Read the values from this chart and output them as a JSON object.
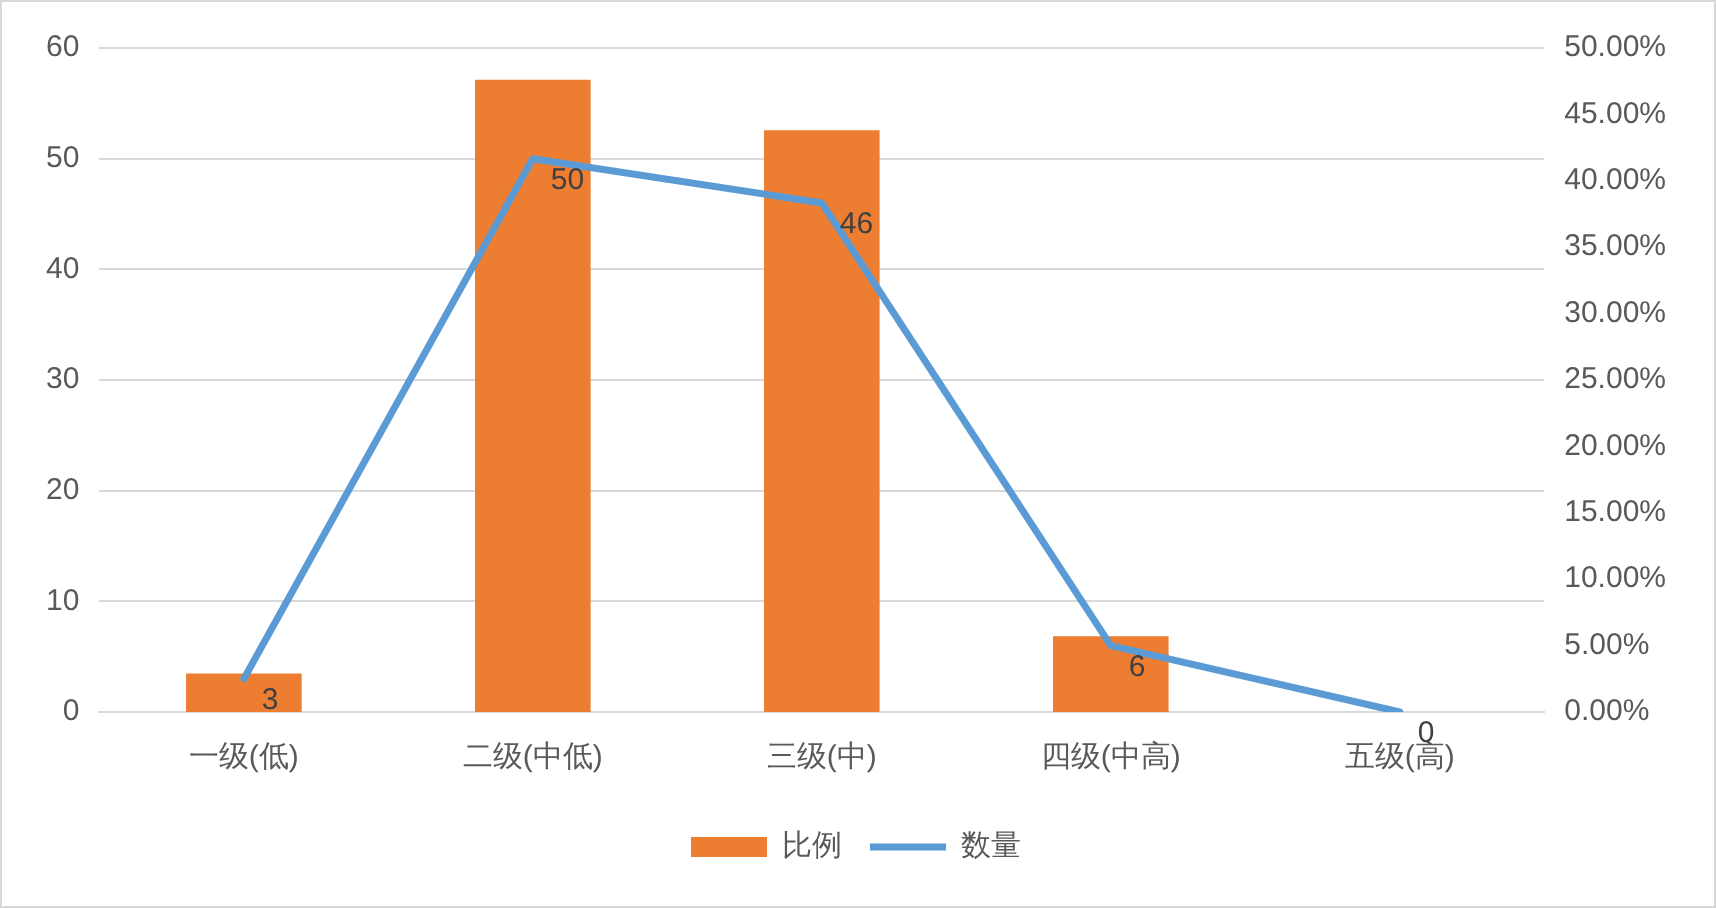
{
  "chart_data": {
    "type": "bar",
    "categories": [
      "一级(低)",
      "二级(中低)",
      "三级(中)",
      "四级(中高)",
      "五级(高)"
    ],
    "series": [
      {
        "name": "比例",
        "axis": "y2",
        "color": "#ed7d31",
        "values": [
          2.9,
          47.6,
          43.8,
          5.7,
          0
        ]
      },
      {
        "name": "数量",
        "type": "line",
        "color": "#5b9bd5",
        "values": [
          3,
          50,
          46,
          6,
          0
        ],
        "value_labels": [
          "3",
          "50",
          "46",
          "6",
          "0"
        ]
      }
    ],
    "ylim": [
      0,
      60
    ],
    "yticks": [
      0,
      10,
      20,
      30,
      40,
      50,
      60
    ],
    "y2lim": [
      0,
      50
    ],
    "y2ticks": [
      {
        "value": 0,
        "label": "0.00%"
      },
      {
        "value": 5,
        "label": "5.00%"
      },
      {
        "value": 10,
        "label": "10.00%"
      },
      {
        "value": 15,
        "label": "15.00%"
      },
      {
        "value": 20,
        "label": "20.00%"
      },
      {
        "value": 25,
        "label": "25.00%"
      },
      {
        "value": 30,
        "label": "30.00%"
      },
      {
        "value": 35,
        "label": "35.00%"
      },
      {
        "value": 40,
        "label": "40.00%"
      },
      {
        "value": 45,
        "label": "45.00%"
      },
      {
        "value": 50,
        "label": "50.00%"
      }
    ],
    "grid": "y",
    "legend": "bottom",
    "marker": "none"
  }
}
